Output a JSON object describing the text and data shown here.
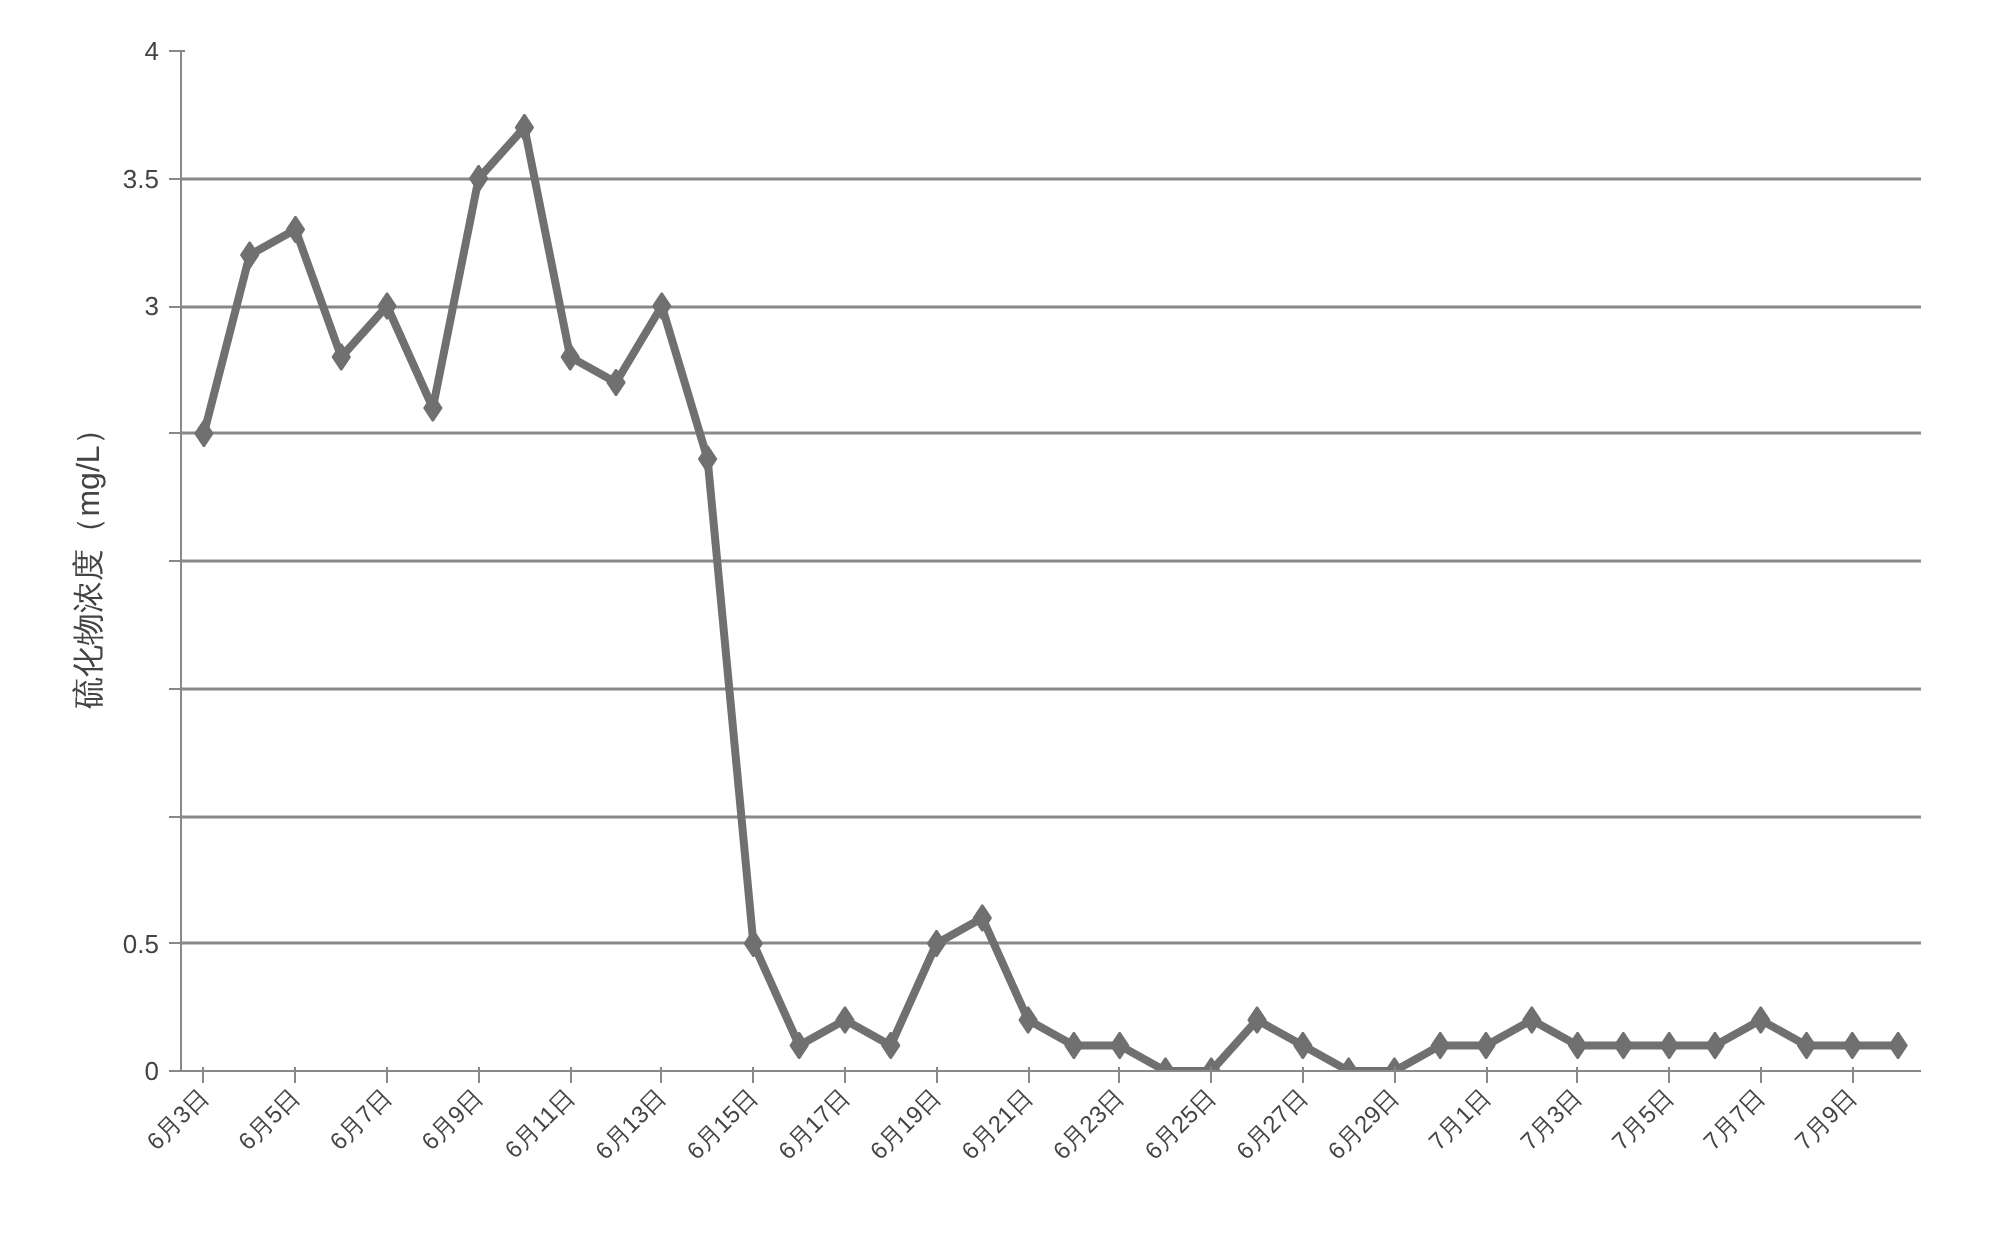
{
  "chart_data": {
    "type": "line",
    "ylabel": "硫化物浓度（mg/L）",
    "categories": [
      "6月3日",
      null,
      "6月5日",
      null,
      "6月7日",
      null,
      "6月9日",
      null,
      "6月11日",
      null,
      "6月13日",
      null,
      "6月15日",
      null,
      "6月17日",
      null,
      "6月19日",
      null,
      "6月21日",
      null,
      "6月23日",
      null,
      "6月25日",
      null,
      "6月27日",
      null,
      "6月29日",
      null,
      "7月1日",
      null,
      "7月3日",
      null,
      "7月5日",
      null,
      "7月7日",
      null,
      "7月9日",
      null
    ],
    "series": [
      {
        "color": "#707070",
        "values": [
          2.5,
          3.2,
          3.3,
          2.8,
          3.0,
          2.6,
          3.5,
          3.7,
          2.8,
          2.7,
          3.0,
          2.4,
          0.5,
          0.1,
          0.2,
          0.1,
          0.5,
          0.6,
          0.2,
          0.1,
          0.1,
          0,
          0,
          0.2,
          0.1,
          0,
          0,
          0.1,
          0.1,
          0.2,
          0.1,
          0.1,
          0.1,
          0.1,
          0.2,
          0.1,
          0.1,
          0.1
        ]
      }
    ],
    "ylim": [
      0,
      4
    ],
    "yticks": [
      0,
      0.5,
      {
        "value": 1,
        "label": null
      },
      {
        "value": 1.5,
        "label": null
      },
      {
        "value": 2,
        "label": null
      },
      {
        "value": 2.5,
        "label": null
      },
      3,
      3.5,
      4
    ],
    "grid": "y",
    "marker": "diamond",
    "line_style": "solid"
  }
}
